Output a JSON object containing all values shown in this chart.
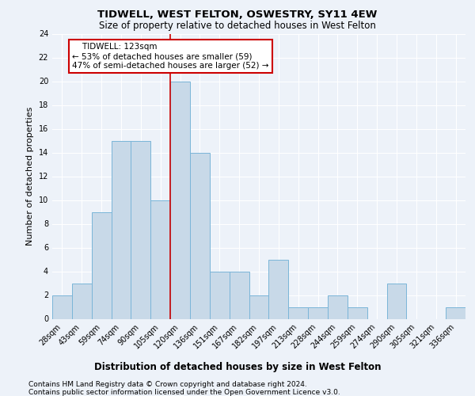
{
  "title": "TIDWELL, WEST FELTON, OSWESTRY, SY11 4EW",
  "subtitle": "Size of property relative to detached houses in West Felton",
  "xlabel": "Distribution of detached houses by size in West Felton",
  "ylabel": "Number of detached properties",
  "categories": [
    "28sqm",
    "43sqm",
    "59sqm",
    "74sqm",
    "90sqm",
    "105sqm",
    "120sqm",
    "136sqm",
    "151sqm",
    "167sqm",
    "182sqm",
    "197sqm",
    "213sqm",
    "228sqm",
    "244sqm",
    "259sqm",
    "274sqm",
    "290sqm",
    "305sqm",
    "321sqm",
    "336sqm"
  ],
  "values": [
    2,
    3,
    9,
    15,
    15,
    10,
    20,
    14,
    4,
    4,
    2,
    5,
    1,
    1,
    2,
    1,
    0,
    3,
    0,
    0,
    1
  ],
  "bar_color": "#c8d9e8",
  "bar_edge_color": "#7ab5d8",
  "vline_x": 5.5,
  "vline_color": "#cc0000",
  "annotation_text": "    TIDWELL: 123sqm\n← 53% of detached houses are smaller (59)\n47% of semi-detached houses are larger (52) →",
  "annotation_box_color": "#ffffff",
  "annotation_box_edge_color": "#cc0000",
  "ylim": [
    0,
    24
  ],
  "yticks": [
    0,
    2,
    4,
    6,
    8,
    10,
    12,
    14,
    16,
    18,
    20,
    22,
    24
  ],
  "footnote1": "Contains HM Land Registry data © Crown copyright and database right 2024.",
  "footnote2": "Contains public sector information licensed under the Open Government Licence v3.0.",
  "background_color": "#edf2f9",
  "grid_color": "#ffffff",
  "title_fontsize": 9.5,
  "subtitle_fontsize": 8.5,
  "ylabel_fontsize": 8,
  "xlabel_fontsize": 8.5,
  "tick_fontsize": 7,
  "annotation_fontsize": 7.5,
  "footnote_fontsize": 6.5
}
